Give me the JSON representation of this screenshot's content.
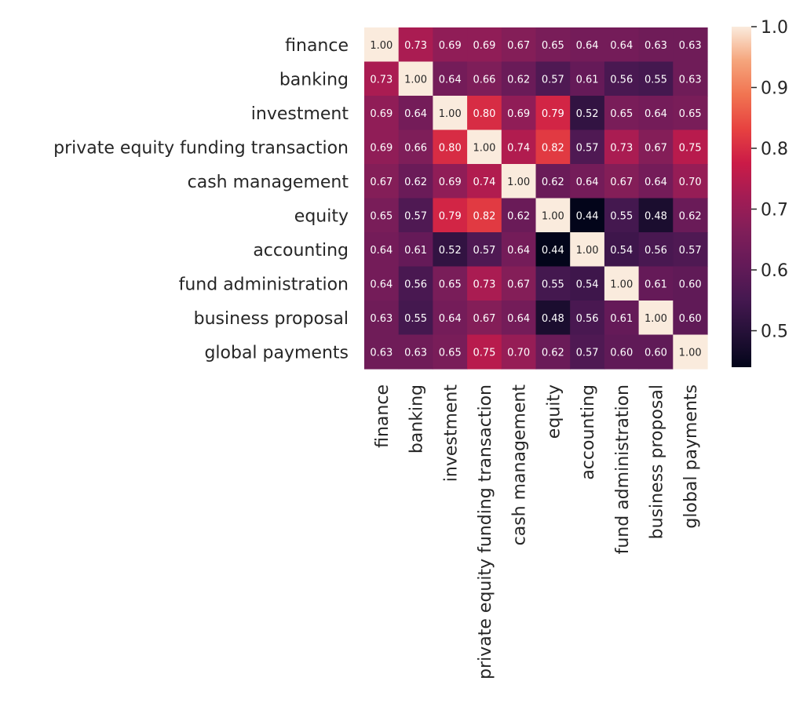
{
  "chart_data": {
    "type": "heatmap",
    "title": "",
    "xlabel": "",
    "ylabel": "",
    "rows": [
      "finance",
      "banking",
      "investment",
      "private equity funding transaction",
      "cash management",
      "equity",
      "accounting",
      "fund administration",
      "business proposal",
      "global payments"
    ],
    "columns": [
      "finance",
      "banking",
      "investment",
      "private equity funding transaction",
      "cash management",
      "equity",
      "accounting",
      "fund administration",
      "business proposal",
      "global payments"
    ],
    "values": [
      [
        1.0,
        0.73,
        0.69,
        0.69,
        0.67,
        0.65,
        0.64,
        0.64,
        0.63,
        0.63
      ],
      [
        0.73,
        1.0,
        0.64,
        0.66,
        0.62,
        0.57,
        0.61,
        0.56,
        0.55,
        0.63
      ],
      [
        0.69,
        0.64,
        1.0,
        0.8,
        0.69,
        0.79,
        0.52,
        0.65,
        0.64,
        0.65
      ],
      [
        0.69,
        0.66,
        0.8,
        1.0,
        0.74,
        0.82,
        0.57,
        0.73,
        0.67,
        0.75
      ],
      [
        0.67,
        0.62,
        0.69,
        0.74,
        1.0,
        0.62,
        0.64,
        0.67,
        0.64,
        0.7
      ],
      [
        0.65,
        0.57,
        0.79,
        0.82,
        0.62,
        1.0,
        0.44,
        0.55,
        0.48,
        0.62
      ],
      [
        0.64,
        0.61,
        0.52,
        0.57,
        0.64,
        0.44,
        1.0,
        0.54,
        0.56,
        0.57
      ],
      [
        0.64,
        0.56,
        0.65,
        0.73,
        0.67,
        0.55,
        0.54,
        1.0,
        0.61,
        0.6
      ],
      [
        0.63,
        0.55,
        0.64,
        0.67,
        0.64,
        0.48,
        0.56,
        0.61,
        1.0,
        0.6
      ],
      [
        0.63,
        0.63,
        0.65,
        0.75,
        0.7,
        0.62,
        0.57,
        0.6,
        0.6,
        1.0
      ]
    ],
    "value_format": "0.00",
    "colormap": "rocket",
    "color_range": [
      0.44,
      1.0
    ],
    "colorbar": {
      "ticks": [
        0.5,
        0.6,
        0.7,
        0.8,
        0.9,
        1.0
      ],
      "tick_labels": [
        "0.5",
        "0.6",
        "0.7",
        "0.8",
        "0.9",
        "1.0"
      ],
      "placement": "right"
    },
    "annotations": true,
    "grid": false
  }
}
